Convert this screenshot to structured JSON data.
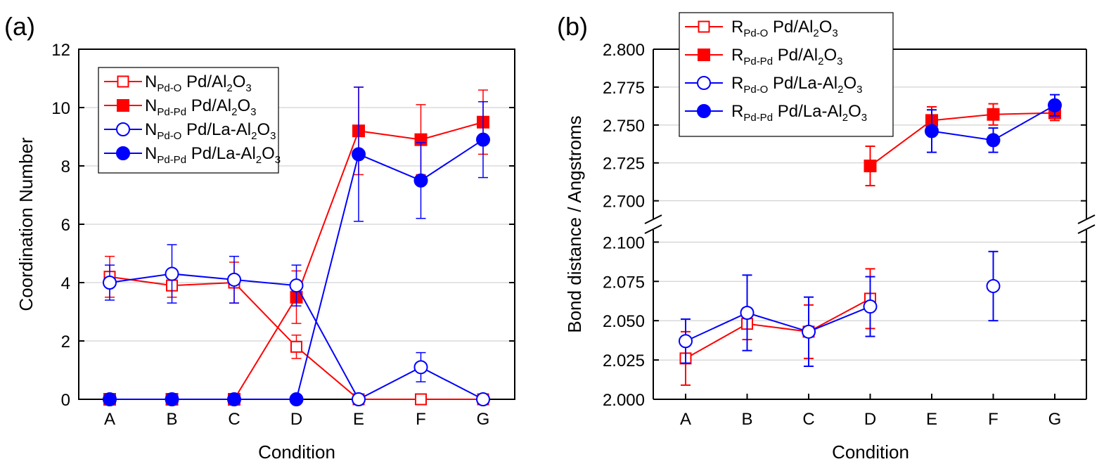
{
  "chart_data": [
    {
      "type": "line",
      "panel_label": "(a)",
      "xlabel": "Condition",
      "ylabel": "Coordination Number",
      "categories": [
        "A",
        "B",
        "C",
        "D",
        "E",
        "F",
        "G"
      ],
      "ylim": [
        0,
        12
      ],
      "yticks": [
        0,
        2,
        4,
        6,
        8,
        10,
        12
      ],
      "grid": "horizontal",
      "legend_position": "top-left",
      "series": [
        {
          "name": "N",
          "sub": "Pd-O",
          "material": "Pd/Al",
          "mat_sub": "2",
          "mat_tail": "O",
          "mat_sub2": "3",
          "color": "#ff0000",
          "marker": "square",
          "filled": false,
          "values": [
            4.2,
            3.9,
            4.0,
            1.8,
            0,
            0,
            0
          ],
          "errors": [
            0.7,
            0.4,
            0.7,
            0.4,
            null,
            null,
            null
          ]
        },
        {
          "name": "N",
          "sub": "Pd-Pd",
          "material": "Pd/Al",
          "mat_sub": "2",
          "mat_tail": "O",
          "mat_sub2": "3",
          "color": "#ff0000",
          "marker": "square",
          "filled": true,
          "values": [
            0,
            0,
            0,
            3.5,
            9.2,
            8.9,
            9.5
          ],
          "errors": [
            null,
            null,
            null,
            0.9,
            1.5,
            1.2,
            1.1
          ]
        },
        {
          "name": "N",
          "sub": "Pd-O",
          "material": "Pd/La-Al",
          "mat_sub": "2",
          "mat_tail": "O",
          "mat_sub2": "3",
          "color": "#0000ff",
          "marker": "circle",
          "filled": false,
          "values": [
            4.0,
            4.3,
            4.1,
            3.9,
            0,
            1.1,
            0
          ],
          "errors": [
            0.6,
            1.0,
            0.8,
            0.7,
            null,
            0.5,
            null
          ]
        },
        {
          "name": "N",
          "sub": "Pd-Pd",
          "material": "Pd/La-Al",
          "mat_sub": "2",
          "mat_tail": "O",
          "mat_sub2": "3",
          "color": "#0000ff",
          "marker": "circle",
          "filled": true,
          "values": [
            0,
            0,
            0,
            0,
            8.4,
            7.5,
            8.9
          ],
          "errors": [
            null,
            null,
            null,
            null,
            2.3,
            1.3,
            1.3
          ]
        }
      ]
    },
    {
      "type": "line",
      "panel_label": "(b)",
      "xlabel": "Condition",
      "ylabel": "Bond distance / Angstroms",
      "categories": [
        "A",
        "B",
        "C",
        "D",
        "E",
        "F",
        "G"
      ],
      "broken_axis": true,
      "ylim_upper": [
        2.685,
        2.8
      ],
      "yticks_upper": [
        "2.700",
        "2.725",
        "2.750",
        "2.775",
        "2.800"
      ],
      "ylim_lower": [
        2.0,
        2.11
      ],
      "yticks_lower": [
        "2.000",
        "2.025",
        "2.050",
        "2.075",
        "2.100"
      ],
      "grid": "horizontal",
      "legend_position": "top-left",
      "series": [
        {
          "name": "R",
          "sub": "Pd-O",
          "material": "Pd/Al",
          "mat_sub": "2",
          "mat_tail": "O",
          "mat_sub2": "3",
          "color": "#ff0000",
          "marker": "square",
          "filled": false,
          "values": [
            2.026,
            2.048,
            2.043,
            2.064,
            null,
            null,
            null
          ],
          "errors": [
            0.017,
            0.01,
            0.017,
            0.019,
            null,
            null,
            null
          ]
        },
        {
          "name": "R",
          "sub": "Pd-Pd",
          "material": "Pd/Al",
          "mat_sub": "2",
          "mat_tail": "O",
          "mat_sub2": "3",
          "color": "#ff0000",
          "marker": "square",
          "filled": true,
          "values": [
            null,
            null,
            null,
            2.723,
            2.753,
            2.757,
            2.758
          ],
          "errors": [
            null,
            null,
            null,
            0.013,
            0.009,
            0.007,
            0.005
          ]
        },
        {
          "name": "R",
          "sub": "Pd-O",
          "material": "Pd/La-Al",
          "mat_sub": "2",
          "mat_tail": "O",
          "mat_sub2": "3",
          "color": "#0000ff",
          "marker": "circle",
          "filled": false,
          "values": [
            2.037,
            2.055,
            2.043,
            2.059,
            null,
            2.072,
            null
          ],
          "errors": [
            0.014,
            0.024,
            0.022,
            0.019,
            null,
            0.022,
            null
          ]
        },
        {
          "name": "R",
          "sub": "Pd-Pd",
          "material": "Pd/La-Al",
          "mat_sub": "2",
          "mat_tail": "O",
          "mat_sub2": "3",
          "color": "#0000ff",
          "marker": "circle",
          "filled": true,
          "values": [
            null,
            null,
            null,
            null,
            2.746,
            2.74,
            2.763
          ],
          "errors": [
            null,
            null,
            null,
            null,
            0.014,
            0.008,
            0.007
          ]
        }
      ]
    }
  ]
}
